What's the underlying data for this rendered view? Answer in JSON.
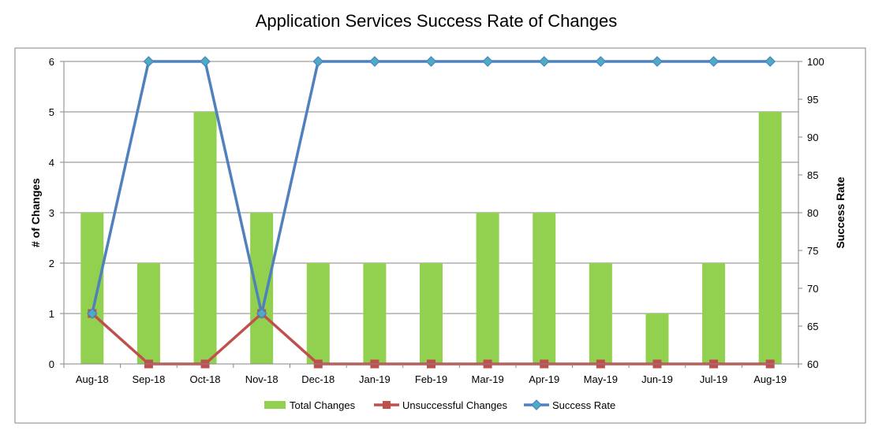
{
  "chart_data": {
    "type": "bar",
    "title": "Application Services Success Rate of Changes",
    "categories": [
      "Aug-18",
      "Sep-18",
      "Oct-18",
      "Nov-18",
      "Dec-18",
      "Jan-19",
      "Feb-19",
      "Mar-19",
      "Apr-19",
      "May-19",
      "Jun-19",
      "Jul-19",
      "Aug-19"
    ],
    "ylabel": "# of Changes",
    "y2label": "Success Rate",
    "ylim": [
      0,
      6
    ],
    "y2lim": [
      60,
      100
    ],
    "yticks": [
      "0",
      "1",
      "2",
      "3",
      "4",
      "5",
      "6"
    ],
    "y2ticks": [
      "60",
      "65",
      "70",
      "75",
      "80",
      "85",
      "90",
      "95",
      "100"
    ],
    "grid": true,
    "legend_position": "bottom",
    "series": [
      {
        "name": "Total Changes",
        "type": "bar",
        "axis": "left",
        "color": "#92D050",
        "values": [
          3,
          2,
          5,
          3,
          2,
          2,
          2,
          3,
          3,
          2,
          1,
          2,
          5
        ]
      },
      {
        "name": "Unsuccessful Changes",
        "type": "line",
        "axis": "left",
        "marker": "square",
        "color": "#C0504D",
        "values": [
          1,
          0,
          0,
          1,
          0,
          0,
          0,
          0,
          0,
          0,
          0,
          0,
          0
        ]
      },
      {
        "name": "Success Rate",
        "type": "line",
        "axis": "right",
        "marker": "diamond",
        "color": "#4F81BD",
        "values": [
          66.67,
          100,
          100,
          66.67,
          100,
          100,
          100,
          100,
          100,
          100,
          100,
          100,
          100
        ]
      }
    ]
  }
}
